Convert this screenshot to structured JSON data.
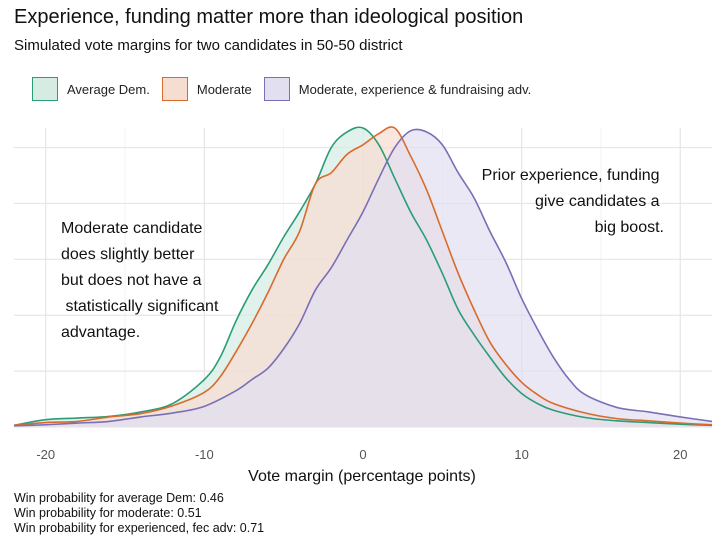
{
  "title": "Experience, funding matter more than ideological position",
  "subtitle": "Simulated vote margins for two candidates in 50-50 district",
  "legend": [
    {
      "label": "Average Dem.",
      "stroke": "#2a9d77",
      "fill": "#d6ece3"
    },
    {
      "label": "Moderate",
      "stroke": "#d86b2b",
      "fill": "#f6ddd2"
    },
    {
      "label": "Moderate, experience  & fundraising adv.",
      "stroke": "#7a6fb6",
      "fill": "#e1dff0"
    }
  ],
  "annotations": {
    "left": [
      "Moderate candidate",
      "does slightly better",
      "but does not have a",
      " statistically significant",
      "advantage."
    ],
    "right": [
      "Prior experience, funding",
      "give candidates a",
      "big boost."
    ]
  },
  "footnotes": [
    "Win probability for average Dem: 0.46",
    "Win probability for moderate: 0.51",
    "Win probability for experienced, fec adv: 0.71"
  ],
  "chart_data": {
    "type": "area",
    "title": "Experience, funding matter more than ideological position",
    "subtitle": "Simulated vote margins for two candidates in 50-50 district",
    "xlabel": "Vote margin (percentage points)",
    "ylabel": "",
    "xlim": [
      -22,
      22
    ],
    "ylim": [
      0,
      0.0535
    ],
    "grid": true,
    "xticks": [
      -20,
      -10,
      0,
      10,
      20
    ],
    "xtick_labels": [
      "-20",
      "-10",
      "0",
      "10",
      "20"
    ],
    "yticks": [
      0,
      0.01,
      0.02,
      0.03,
      0.04,
      0.05
    ],
    "ytick_labels_shown": false,
    "series": [
      {
        "name": "Average Dem.",
        "color": "#2a9d77",
        "fill": "#d6ece3",
        "x": [
          -22,
          -20,
          -18,
          -16,
          -14,
          -12,
          -10,
          -9,
          -8,
          -7,
          -6,
          -5,
          -4,
          -3,
          -2,
          -1,
          0,
          1,
          2,
          3,
          4,
          5,
          6,
          7,
          8,
          9,
          10,
          11,
          12,
          14,
          16,
          18,
          20,
          22
        ],
        "y": [
          0.0003,
          0.0013,
          0.0016,
          0.0019,
          0.0027,
          0.0042,
          0.0085,
          0.0125,
          0.019,
          0.0245,
          0.029,
          0.034,
          0.0385,
          0.0435,
          0.05,
          0.0528,
          0.0535,
          0.0505,
          0.0445,
          0.0385,
          0.0335,
          0.0275,
          0.021,
          0.0165,
          0.0125,
          0.0088,
          0.006,
          0.0042,
          0.003,
          0.0017,
          0.0011,
          0.0008,
          0.0005,
          0.0003
        ]
      },
      {
        "name": "Moderate",
        "color": "#d86b2b",
        "fill": "#f6ddd2",
        "x": [
          -22,
          -20,
          -18,
          -16,
          -14,
          -12,
          -10,
          -9,
          -8,
          -7,
          -6,
          -5,
          -4,
          -3,
          -2,
          -1,
          0,
          1,
          2,
          3,
          4,
          5,
          6,
          7,
          8,
          9,
          10,
          11,
          12,
          14,
          16,
          18,
          20,
          22
        ],
        "y": [
          0.0003,
          0.0008,
          0.001,
          0.0018,
          0.0024,
          0.0038,
          0.0062,
          0.009,
          0.0135,
          0.0185,
          0.024,
          0.03,
          0.035,
          0.0435,
          0.0455,
          0.0488,
          0.0505,
          0.0525,
          0.0535,
          0.0485,
          0.0425,
          0.035,
          0.0275,
          0.021,
          0.0152,
          0.0112,
          0.008,
          0.0058,
          0.0042,
          0.0025,
          0.0015,
          0.0011,
          0.0007,
          0.0004
        ]
      },
      {
        "name": "Moderate, experience  & fundraising adv.",
        "color": "#7a6fb6",
        "fill": "#e1dff0",
        "x": [
          -22,
          -20,
          -18,
          -16,
          -14,
          -12,
          -10,
          -8,
          -7,
          -6,
          -5,
          -4,
          -3,
          -2,
          -1,
          0,
          1,
          2,
          3,
          4,
          5,
          6,
          7,
          8,
          9,
          10,
          11,
          12,
          13,
          14,
          16,
          18,
          20,
          22
        ],
        "y": [
          0.0002,
          0.0004,
          0.0007,
          0.001,
          0.0018,
          0.0025,
          0.0037,
          0.0065,
          0.0085,
          0.0105,
          0.014,
          0.0185,
          0.0245,
          0.0285,
          0.0335,
          0.0385,
          0.0445,
          0.05,
          0.053,
          0.0528,
          0.0505,
          0.0455,
          0.041,
          0.035,
          0.0295,
          0.023,
          0.0175,
          0.0125,
          0.0085,
          0.0058,
          0.0035,
          0.0027,
          0.0018,
          0.001
        ]
      }
    ]
  }
}
